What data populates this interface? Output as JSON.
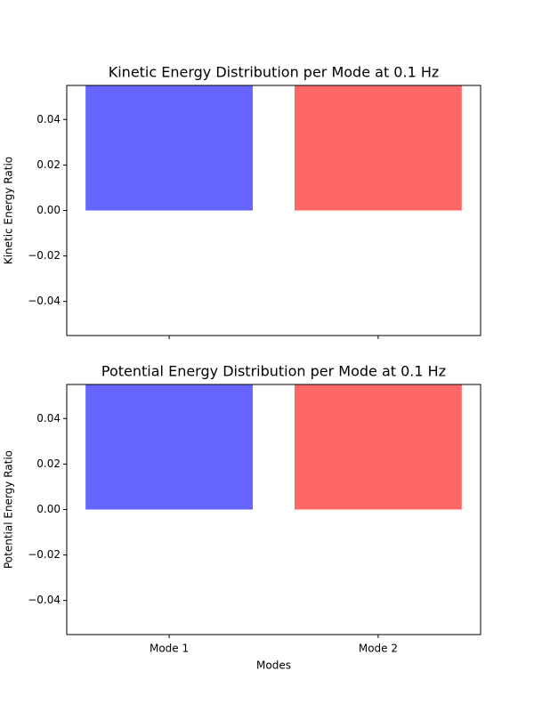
{
  "chart_data": [
    {
      "type": "bar",
      "title": "Kinetic Energy Distribution per Mode at 0.1 Hz",
      "ylabel": "Kinetic Energy Ratio",
      "categories": [
        null,
        null
      ],
      "values": [
        0.055,
        0.055
      ],
      "colors": [
        "#6666ff",
        "#ff6666"
      ],
      "ylim": [
        -0.055,
        0.055
      ],
      "yticks": [
        {
          "value": -0.04,
          "label": "−0.04"
        },
        {
          "value": -0.02,
          "label": "−0.02"
        },
        {
          "value": 0,
          "label": "0.00"
        },
        {
          "value": 0.02,
          "label": "0.02"
        },
        {
          "value": 0.04,
          "label": "0.04"
        }
      ]
    },
    {
      "type": "bar",
      "title": "Potential Energy Distribution per Mode at 0.1 Hz",
      "ylabel": "Potential Energy Ratio",
      "xlabel": "Modes",
      "categories": [
        "Mode 1",
        "Mode 2"
      ],
      "values": [
        0.055,
        0.055
      ],
      "colors": [
        "#6666ff",
        "#ff6666"
      ],
      "ylim": [
        -0.055,
        0.055
      ],
      "yticks": [
        {
          "value": -0.04,
          "label": "−0.04"
        },
        {
          "value": -0.02,
          "label": "−0.02"
        },
        {
          "value": 0,
          "label": "0.00"
        },
        {
          "value": 0.02,
          "label": "0.02"
        },
        {
          "value": 0.04,
          "label": "0.04"
        }
      ]
    }
  ]
}
